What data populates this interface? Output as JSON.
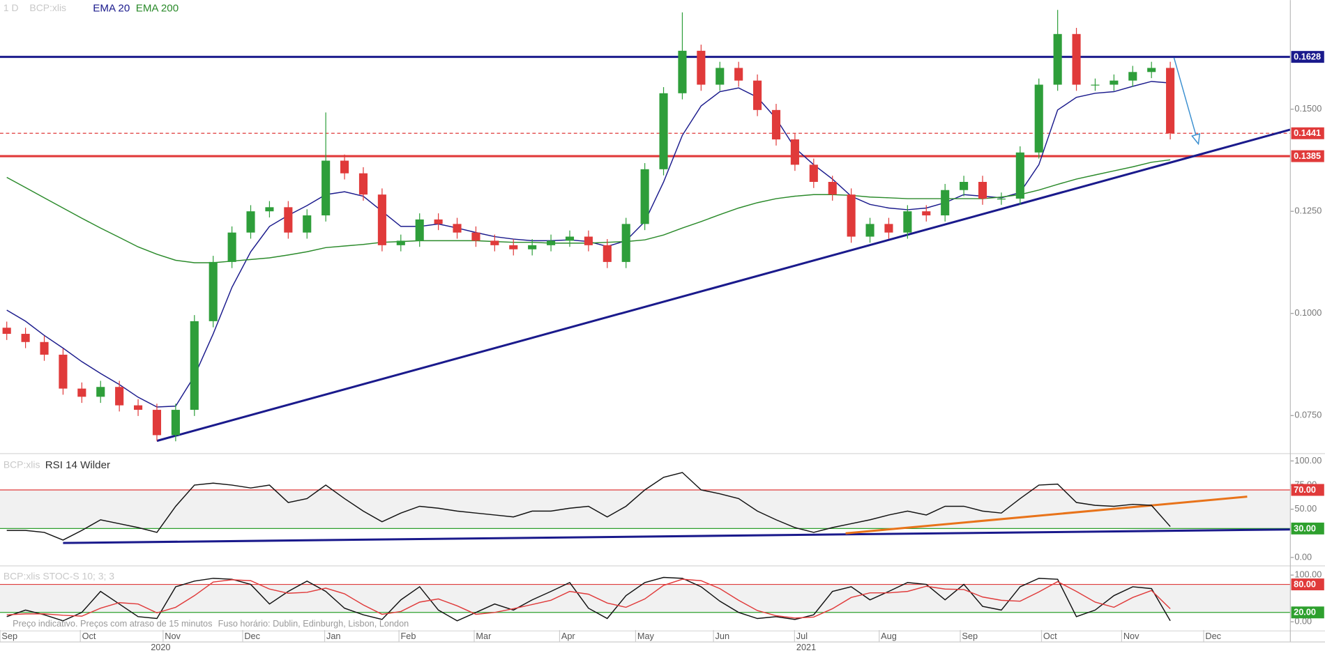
{
  "chart_data": [
    {
      "type": "candlestick",
      "title": "1 D",
      "subtitle": "BCP:xlis",
      "xlim": [
        -0.36,
        68.4
      ],
      "xticks": [
        {
          "value": -0.36,
          "label": "Sep"
        },
        {
          "value": 3.92,
          "label": "Oct"
        },
        {
          "value": 8.33,
          "label": "Nov"
        },
        {
          "value": 12.57,
          "label": "Dec"
        },
        {
          "value": 16.94,
          "label": "Jan"
        },
        {
          "value": 20.9,
          "label": "Feb"
        },
        {
          "value": 24.91,
          "label": "Mar"
        },
        {
          "value": 29.46,
          "label": "Apr"
        },
        {
          "value": 33.51,
          "label": "May"
        },
        {
          "value": 37.66,
          "label": "Jun"
        },
        {
          "value": 41.98,
          "label": "Jul"
        },
        {
          "value": 46.49,
          "label": "Aug"
        },
        {
          "value": 50.81,
          "label": "Sep"
        },
        {
          "value": 55.14,
          "label": "Oct"
        },
        {
          "value": 59.41,
          "label": "Nov"
        },
        {
          "value": 63.78,
          "label": "Dec"
        }
      ],
      "years": [
        {
          "value": 8.2,
          "label": "2020"
        },
        {
          "value": 42.6,
          "label": "2021"
        }
      ],
      "ylim": [
        0.0661,
        0.1767
      ],
      "yticks": [
        {
          "value": 0.15,
          "label": "0.1500"
        },
        {
          "value": 0.125,
          "label": "0.1250"
        },
        {
          "value": 0.1,
          "label": "0.1000"
        },
        {
          "value": 0.075,
          "label": "0.0750"
        }
      ],
      "up_color": "#2e9e3a",
      "down_color": "#e03a3a",
      "open": [
        0.0965,
        0.095,
        0.093,
        0.0899,
        0.0816,
        0.0796,
        0.082,
        0.0775,
        0.0764,
        0.0702,
        0.0764,
        0.0981,
        0.1126,
        0.1198,
        0.125,
        0.126,
        0.1198,
        0.124,
        0.1374,
        0.1343,
        0.1291,
        0.1167,
        0.1178,
        0.123,
        0.1219,
        0.1198,
        0.1178,
        0.1167,
        0.1157,
        0.1167,
        0.1178,
        0.1188,
        0.1167,
        0.1126,
        0.1219,
        0.1353,
        0.1539,
        0.1643,
        0.156,
        0.1601,
        0.157,
        0.1498,
        0.1426,
        0.1364,
        0.1322,
        0.1291,
        0.1188,
        0.1219,
        0.1198,
        0.125,
        0.124,
        0.1302,
        0.1322,
        0.1281,
        0.1281,
        0.1394,
        0.156,
        0.1684,
        0.156,
        0.156,
        0.157,
        0.1591,
        0.1601
      ],
      "high": [
        0.098,
        0.0965,
        0.0945,
        0.0914,
        0.0831,
        0.0835,
        0.0835,
        0.079,
        0.0779,
        0.0779,
        0.0996,
        0.1141,
        0.1213,
        0.1265,
        0.1275,
        0.1275,
        0.1255,
        0.1492,
        0.1389,
        0.1358,
        0.1306,
        0.1193,
        0.1245,
        0.1245,
        0.1234,
        0.1213,
        0.1193,
        0.1182,
        0.1182,
        0.1193,
        0.1203,
        0.1203,
        0.1182,
        0.1234,
        0.1368,
        0.1554,
        0.1737,
        0.1658,
        0.1616,
        0.1616,
        0.1585,
        0.1513,
        0.1441,
        0.1379,
        0.1337,
        0.1306,
        0.1234,
        0.1234,
        0.1265,
        0.1265,
        0.1317,
        0.1337,
        0.1337,
        0.1296,
        0.1409,
        0.1575,
        0.1743,
        0.1699,
        0.1575,
        0.1585,
        0.1606,
        0.1616,
        0.1616
      ],
      "low": [
        0.0935,
        0.0915,
        0.0884,
        0.0801,
        0.0781,
        0.0781,
        0.076,
        0.0749,
        0.0688,
        0.0687,
        0.0749,
        0.0966,
        0.1111,
        0.1183,
        0.1235,
        0.1183,
        0.1183,
        0.1225,
        0.1328,
        0.1276,
        0.1152,
        0.1152,
        0.1163,
        0.1204,
        0.1183,
        0.1163,
        0.1152,
        0.1142,
        0.1142,
        0.1152,
        0.1163,
        0.1152,
        0.1111,
        0.1111,
        0.1204,
        0.1338,
        0.1524,
        0.1545,
        0.1545,
        0.1555,
        0.1483,
        0.1411,
        0.1349,
        0.1307,
        0.1276,
        0.1173,
        0.1173,
        0.1183,
        0.1183,
        0.1225,
        0.1225,
        0.1287,
        0.1266,
        0.1266,
        0.1266,
        0.1379,
        0.1545,
        0.1545,
        0.1545,
        0.1545,
        0.1555,
        0.1576,
        0.1426
      ],
      "close": [
        0.095,
        0.093,
        0.0899,
        0.0816,
        0.0796,
        0.082,
        0.0775,
        0.0764,
        0.0702,
        0.0764,
        0.0981,
        0.1126,
        0.1198,
        0.125,
        0.126,
        0.1198,
        0.124,
        0.1374,
        0.1343,
        0.1291,
        0.1167,
        0.1178,
        0.123,
        0.1219,
        0.1198,
        0.1178,
        0.1167,
        0.1157,
        0.1167,
        0.1178,
        0.1188,
        0.1167,
        0.1126,
        0.1219,
        0.1353,
        0.1539,
        0.1643,
        0.156,
        0.1601,
        0.157,
        0.1498,
        0.1426,
        0.1364,
        0.1322,
        0.1291,
        0.1188,
        0.1219,
        0.1198,
        0.125,
        0.124,
        0.1302,
        0.1322,
        0.1281,
        0.1281,
        0.1394,
        0.156,
        0.1684,
        0.156,
        0.156,
        0.157,
        0.1591,
        0.1601,
        0.1441
      ],
      "series": [
        {
          "name": "EMA 20",
          "color": "#1a1a8c",
          "values": [
            0.1008,
            0.0981,
            0.0946,
            0.0915,
            0.0882,
            0.0853,
            0.0826,
            0.0795,
            0.0771,
            0.0773,
            0.0847,
            0.095,
            0.1064,
            0.1151,
            0.1213,
            0.124,
            0.1264,
            0.1291,
            0.1298,
            0.1287,
            0.125,
            0.1213,
            0.1213,
            0.1219,
            0.1209,
            0.1198,
            0.1188,
            0.1182,
            0.1178,
            0.1178,
            0.118,
            0.1176,
            0.1164,
            0.1178,
            0.1225,
            0.1322,
            0.1436,
            0.1508,
            0.1543,
            0.1552,
            0.1529,
            0.1477,
            0.1405,
            0.1364,
            0.1329,
            0.1287,
            0.1267,
            0.1258,
            0.1254,
            0.1258,
            0.1271,
            0.1291,
            0.1287,
            0.1283,
            0.1296,
            0.1364,
            0.1498,
            0.1529,
            0.1539,
            0.1543,
            0.1556,
            0.1568,
            0.1564
          ]
        },
        {
          "name": "EMA 200",
          "color": "#2a8a2a",
          "values": [
            0.1333,
            0.1308,
            0.1283,
            0.1258,
            0.1233,
            0.1209,
            0.1186,
            0.1163,
            0.1145,
            0.113,
            0.1124,
            0.1124,
            0.1128,
            0.1132,
            0.1136,
            0.1143,
            0.1151,
            0.1161,
            0.1165,
            0.1169,
            0.1174,
            0.1176,
            0.1178,
            0.1178,
            0.1178,
            0.1178,
            0.1176,
            0.1174,
            0.1174,
            0.1172,
            0.1172,
            0.1172,
            0.1174,
            0.1176,
            0.118,
            0.1192,
            0.1209,
            0.1225,
            0.1242,
            0.1258,
            0.1271,
            0.1281,
            0.1287,
            0.1291,
            0.1291,
            0.1289,
            0.1285,
            0.1283,
            0.1281,
            0.1281,
            0.1281,
            0.1281,
            0.1281,
            0.1285,
            0.1291,
            0.1302,
            0.1316,
            0.1329,
            0.1339,
            0.1349,
            0.1359,
            0.137,
            0.1376
          ]
        }
      ],
      "hlines": [
        {
          "value": 0.1628,
          "color": "#1a1a8c",
          "dash": false,
          "width": 2.5
        },
        {
          "value": 0.1441,
          "color": "#e03a3a",
          "dash": true,
          "width": 1
        },
        {
          "value": 0.1385,
          "color": "#e03a3a",
          "dash": false,
          "width": 2.5
        }
      ],
      "lines": [
        {
          "points": [
            [
              8,
              0.0688
            ],
            [
              68.4,
              0.145
            ]
          ],
          "color": "#1a1a8c"
        }
      ],
      "arrow": {
        "points": [
          [
            62.2,
            0.1626
          ],
          [
            63.5,
            0.1415
          ]
        ],
        "color": "#3a8fd0"
      }
    },
    {
      "type": "line",
      "title": "BCP:xlis",
      "ylim": [
        -7,
        105
      ],
      "yticks": [
        {
          "value": 100,
          "label": "100.00"
        },
        {
          "value": 75,
          "label": "75.00"
        },
        {
          "value": 50,
          "label": "50.00"
        },
        {
          "value": 0,
          "label": "0.00"
        }
      ],
      "band": [
        30,
        70
      ],
      "hlines": [
        {
          "value": 70,
          "label": "70.00",
          "color": "#e03a3a",
          "dash": false,
          "width": 1
        },
        {
          "value": 30,
          "label": "30.00",
          "color": "#2ea02e",
          "dash": false,
          "width": 1
        }
      ],
      "lines": [
        {
          "points": [
            [
              3,
              15
            ],
            [
              68.4,
              29
            ]
          ],
          "color": "#1a1a8c"
        },
        {
          "points": [
            [
              44.7,
              25
            ],
            [
              66.1,
              63
            ]
          ],
          "color": "#e8731a"
        }
      ],
      "series": [
        {
          "name": "RSI 14 Wilder",
          "color": "#111111",
          "values": [
            28,
            28,
            26,
            18,
            28,
            39,
            35,
            31,
            26,
            53,
            75,
            77,
            75,
            72,
            75,
            57,
            61,
            75,
            61,
            48,
            37,
            46,
            53,
            51,
            48,
            46,
            44,
            42,
            48,
            48,
            51,
            53,
            42,
            53,
            70,
            83,
            88,
            70,
            66,
            61,
            48,
            39,
            31,
            26,
            31,
            35,
            39,
            44,
            48,
            44,
            53,
            53,
            48,
            46,
            61,
            75,
            76,
            57,
            54,
            53,
            55,
            54,
            32
          ]
        }
      ]
    },
    {
      "type": "line",
      "title": "BCP:xlis  STOC-S 10; 3; 3",
      "ylim": [
        -16,
        116
      ],
      "yticks": [
        {
          "value": 100,
          "label": "100.00"
        },
        {
          "value": 0,
          "label": "0.00"
        }
      ],
      "band": [
        20,
        80
      ],
      "hlines": [
        {
          "value": 80,
          "label": "80.00",
          "color": "#e03a3a",
          "dash": false,
          "width": 1
        },
        {
          "value": 20,
          "label": "20.00",
          "color": "#2ea02e",
          "dash": false,
          "width": 1
        }
      ],
      "series": [
        {
          "color": "#111111",
          "values": [
            11,
            25,
            15,
            2,
            20,
            65,
            38,
            11,
            7,
            75,
            87,
            93,
            91,
            80,
            38,
            65,
            87,
            65,
            29,
            15,
            5,
            47,
            75,
            25,
            2,
            20,
            38,
            25,
            47,
            65,
            84,
            29,
            7,
            56,
            84,
            95,
            93,
            75,
            44,
            20,
            7,
            11,
            5,
            15,
            65,
            75,
            47,
            65,
            84,
            80,
            47,
            80,
            33,
            25,
            75,
            93,
            91,
            11,
            25,
            56,
            75,
            71,
            2
          ]
        },
        {
          "color": "#e03a3a",
          "values": [
            15,
            17,
            17,
            14,
            12,
            29,
            41,
            38,
            19,
            31,
            56,
            85,
            90,
            88,
            70,
            61,
            63,
            72,
            60,
            36,
            16,
            22,
            42,
            49,
            34,
            16,
            20,
            28,
            37,
            46,
            65,
            59,
            40,
            31,
            49,
            78,
            91,
            88,
            71,
            46,
            24,
            13,
            8,
            10,
            28,
            52,
            62,
            62,
            65,
            76,
            70,
            69,
            53,
            46,
            44,
            64,
            86,
            65,
            42,
            31,
            52,
            67,
            28
          ]
        }
      ]
    }
  ],
  "footer": {
    "delay": "Preço indicativo. Preços com atraso de 15 minutos",
    "timezone": "Fuso horário: Dublin, Edinburgh, Lisbon, London"
  }
}
